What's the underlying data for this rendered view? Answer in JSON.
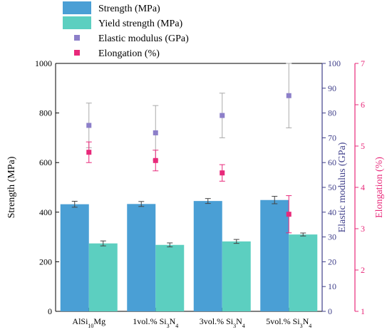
{
  "chart_data": {
    "type": "bar",
    "categories": [
      "AlSi10Mg",
      "1vol.% Si3N4",
      "3vol.% Si3N4",
      "5vol.% Si3N4"
    ],
    "series": [
      {
        "name": "Strength (MPa)",
        "kind": "bar",
        "axis": "left",
        "color": "#4a9fd5",
        "values": [
          432,
          433,
          445,
          449
        ],
        "errors": [
          12,
          10,
          10,
          15
        ]
      },
      {
        "name": "Yield strength (MPa)",
        "kind": "bar",
        "axis": "left",
        "color": "#5ccfc0",
        "values": [
          274,
          268,
          282,
          310
        ],
        "errors": [
          10,
          8,
          8,
          6
        ]
      },
      {
        "name": "Elastic modulus (GPa)",
        "kind": "scatter",
        "axis": "right1",
        "color": "#8c7fc9",
        "values": [
          75,
          72,
          79,
          87
        ],
        "errors": [
          9,
          11,
          9,
          13
        ]
      },
      {
        "name": "Elongation (%)",
        "kind": "scatter",
        "axis": "right2",
        "color": "#e8297a",
        "values": [
          4.85,
          4.65,
          4.35,
          3.35
        ],
        "errors": [
          0.25,
          0.25,
          0.2,
          0.45
        ]
      }
    ],
    "axes": {
      "left": {
        "label": "Strength (MPa)",
        "ylim": [
          0,
          1000
        ],
        "ticks": [
          0,
          200,
          400,
          600,
          800,
          1000
        ],
        "color": "#000000"
      },
      "right1": {
        "label": "Elastic modulus (GPa)",
        "ylim": [
          0,
          100
        ],
        "ticks": [
          0,
          10,
          20,
          30,
          40,
          50,
          60,
          70,
          80,
          90,
          100
        ],
        "color": "#3f3f8a"
      },
      "right2": {
        "label": "Elongation (%)",
        "ylim": [
          1,
          7
        ],
        "ticks": [
          1,
          2,
          3,
          4,
          5,
          6,
          7
        ],
        "color": "#e8297a"
      }
    },
    "legend_position": "top-left",
    "grid": false
  }
}
